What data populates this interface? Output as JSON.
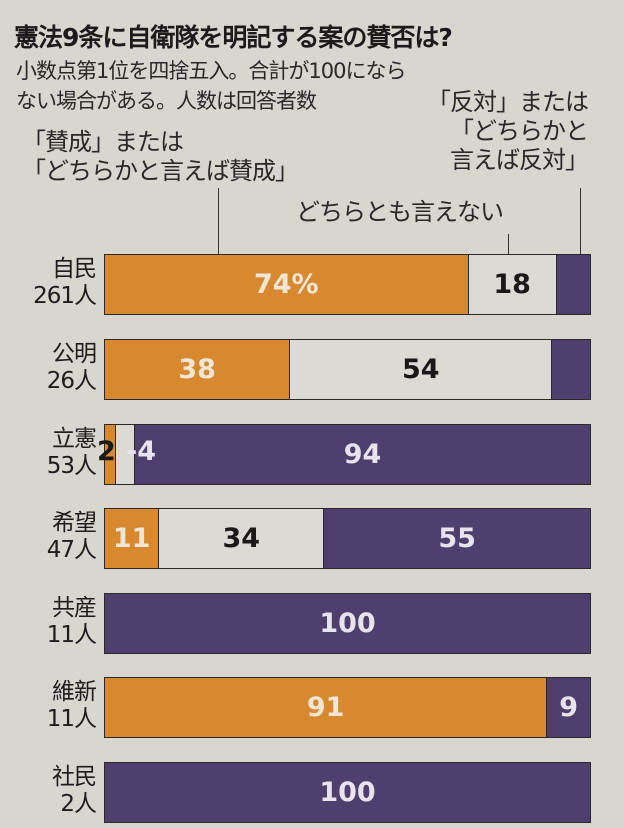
{
  "header": {
    "title": "憲法9条に自衛隊を明記する案の賛否は?",
    "note_line1": "小数点第1位を四捨五入。合計が100になら",
    "note_line2": "ない場合がある。人数は回答者数"
  },
  "legend": {
    "favor_line1": "「賛成」または",
    "favor_line2": "「どちらかと言えば賛成」",
    "oppose_line1": "「反対」または",
    "oppose_line2": "「どちらかと",
    "oppose_line3": "言えば反対」",
    "neutral": "どちらとも言えない"
  },
  "colors": {
    "favor": "#d8892f",
    "neutral": "#dcdad4",
    "oppose": "#4f3f6f"
  },
  "rows": [
    {
      "party": "自民",
      "respondents": "261人",
      "favor": 74,
      "neutral": 18,
      "oppose": 7,
      "favor_label": "74%",
      "neutral_label": "18",
      "oppose_label": "7"
    },
    {
      "party": "公明",
      "respondents": "26人",
      "favor": 38,
      "neutral": 54,
      "oppose": 8,
      "favor_label": "38",
      "neutral_label": "54",
      "oppose_label": "8"
    },
    {
      "party": "立憲",
      "respondents": "53人",
      "favor": 2,
      "neutral": 4,
      "oppose": 94,
      "favor_label": "2",
      "neutral_label": "4",
      "oppose_label": "94"
    },
    {
      "party": "希望",
      "respondents": "47人",
      "favor": 11,
      "neutral": 34,
      "oppose": 55,
      "favor_label": "11",
      "neutral_label": "34",
      "oppose_label": "55"
    },
    {
      "party": "共産",
      "respondents": "11人",
      "favor": 0,
      "neutral": 0,
      "oppose": 100,
      "favor_label": "",
      "neutral_label": "",
      "oppose_label": "100"
    },
    {
      "party": "維新",
      "respondents": "11人",
      "favor": 91,
      "neutral": 0,
      "oppose": 9,
      "favor_label": "91",
      "neutral_label": "",
      "oppose_label": "9"
    },
    {
      "party": "社民",
      "respondents": "2人",
      "favor": 0,
      "neutral": 0,
      "oppose": 100,
      "favor_label": "",
      "neutral_label": "",
      "oppose_label": "100"
    }
  ],
  "chart_data": {
    "type": "bar",
    "orientation": "horizontal-stacked-100",
    "title": "憲法9条に自衛隊を明記する案の賛否は?",
    "subtitle": "小数点第1位を四捨五入。合計が100にならない場合がある。人数は回答者数",
    "categories": [
      "自民 261人",
      "公明 26人",
      "立憲 53人",
      "希望 47人",
      "共産 11人",
      "維新 11人",
      "社民 2人"
    ],
    "series": [
      {
        "name": "「賛成」または「どちらかと言えば賛成」",
        "color": "#d8892f",
        "values": [
          74,
          38,
          2,
          11,
          0,
          91,
          0
        ]
      },
      {
        "name": "どちらとも言えない",
        "color": "#dcdad4",
        "values": [
          18,
          54,
          4,
          34,
          0,
          0,
          0
        ]
      },
      {
        "name": "「反対」または「どちらかと言えば反対」",
        "color": "#4f3f6f",
        "values": [
          7,
          8,
          94,
          55,
          100,
          9,
          100
        ]
      }
    ],
    "unit": "%",
    "xlim": [
      0,
      100
    ],
    "legend_position": "top (annotated with leader lines)",
    "grid": false
  }
}
